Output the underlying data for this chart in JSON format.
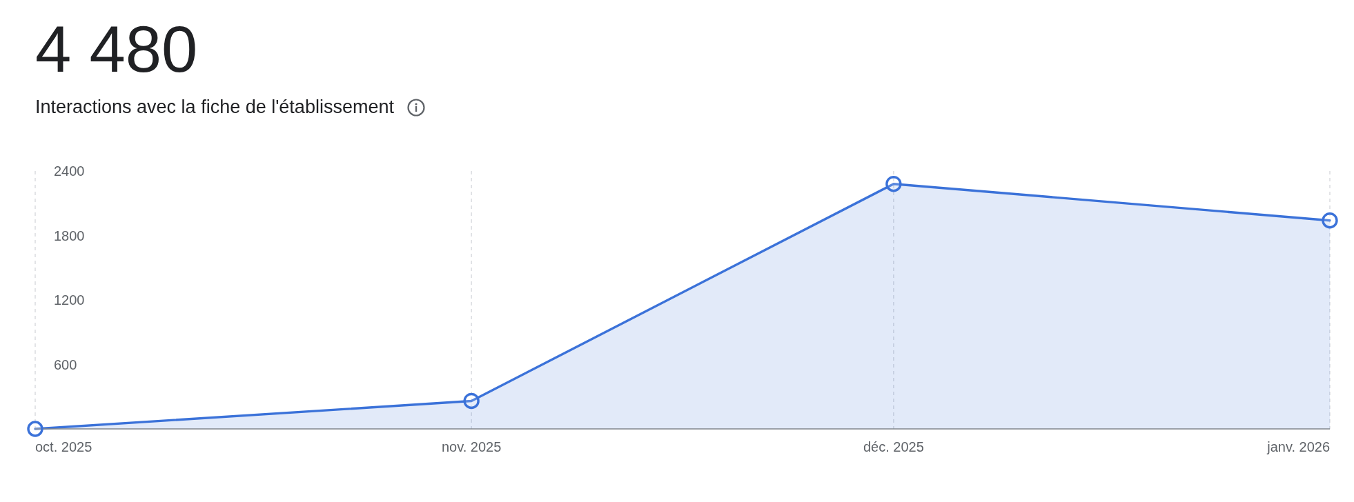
{
  "chart_data": {
    "type": "area",
    "title": "4 480",
    "subtitle": "Interactions avec la fiche de l'établissement",
    "x": [
      "2025-10",
      "2025-11",
      "2025-12",
      "2026-01"
    ],
    "series": [
      {
        "color": "#3b72d9",
        "values": [
          0,
          260,
          2280,
          1940
        ]
      }
    ],
    "xlim": [
      "2025-10",
      "2026-01"
    ],
    "xticks": [
      {
        "value": "2025-10",
        "label": "oct. 2025"
      },
      {
        "value": "2025-11",
        "label": "nov. 2025"
      },
      {
        "value": "2025-12",
        "label": "déc. 2025"
      },
      {
        "value": "2026-01",
        "label": "janv. 2026"
      }
    ],
    "ylim": [
      0,
      2400
    ],
    "yticks": [
      600,
      1200,
      1800,
      2400
    ],
    "grid": "x",
    "marker": "circle"
  }
}
